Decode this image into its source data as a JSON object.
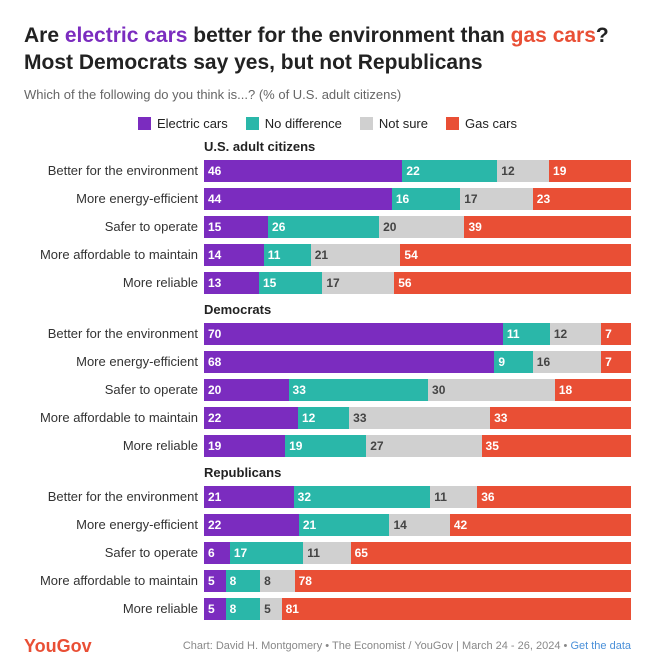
{
  "title_pre": "Are ",
  "title_hl1": "electric cars",
  "title_mid": " better for the environment than ",
  "title_hl2": "gas cars",
  "title_post": "? Most Democrats say yes, but not Republicans",
  "subtitle": "Which of the following do you think is...? (% of U.S. adult citizens)",
  "colors": {
    "electric": "#7b2cbf",
    "nodiff": "#2ab7a9",
    "notsure": "#d0d0d0",
    "gas": "#e94f35",
    "bg": "#ffffff"
  },
  "legend": [
    {
      "label": "Electric cars",
      "colorKey": "electric"
    },
    {
      "label": "No difference",
      "colorKey": "nodiff"
    },
    {
      "label": "Not sure",
      "colorKey": "notsure"
    },
    {
      "label": "Gas cars",
      "colorKey": "gas"
    }
  ],
  "bar_total": 100,
  "value_fontsize": 12,
  "label_fontsize": 13,
  "panels": [
    {
      "title": "U.S. adult citizens",
      "rows": [
        {
          "label": "Better for the environment",
          "vals": [
            46,
            22,
            12,
            19
          ]
        },
        {
          "label": "More energy-efficient",
          "vals": [
            44,
            16,
            17,
            23
          ]
        },
        {
          "label": "Safer to operate",
          "vals": [
            15,
            26,
            20,
            39
          ]
        },
        {
          "label": "More affordable to maintain",
          "vals": [
            14,
            11,
            21,
            54
          ]
        },
        {
          "label": "More reliable",
          "vals": [
            13,
            15,
            17,
            56
          ]
        }
      ]
    },
    {
      "title": "Democrats",
      "rows": [
        {
          "label": "Better for the environment",
          "vals": [
            70,
            11,
            12,
            7
          ]
        },
        {
          "label": "More energy-efficient",
          "vals": [
            68,
            9,
            16,
            7
          ]
        },
        {
          "label": "Safer to operate",
          "vals": [
            20,
            33,
            30,
            18
          ]
        },
        {
          "label": "More affordable to maintain",
          "vals": [
            22,
            12,
            33,
            33
          ]
        },
        {
          "label": "More reliable",
          "vals": [
            19,
            19,
            27,
            35
          ]
        }
      ]
    },
    {
      "title": "Republicans",
      "rows": [
        {
          "label": "Better for the environment",
          "vals": [
            21,
            32,
            11,
            36
          ]
        },
        {
          "label": "More energy-efficient",
          "vals": [
            22,
            21,
            14,
            42
          ]
        },
        {
          "label": "Safer to operate",
          "vals": [
            6,
            17,
            11,
            65
          ]
        },
        {
          "label": "More affordable to maintain",
          "vals": [
            5,
            8,
            8,
            78
          ]
        },
        {
          "label": "More reliable",
          "vals": [
            5,
            8,
            5,
            81
          ]
        }
      ]
    }
  ],
  "footer": {
    "logo": "YouGov",
    "text": "Chart: David H. Montgomery • The Economist / YouGov | March 24 - 26, 2024 • ",
    "link": "Get the data"
  }
}
